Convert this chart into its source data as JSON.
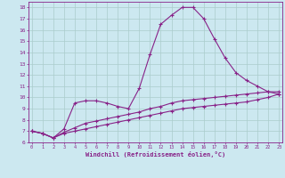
{
  "xlabel": "Windchill (Refroidissement éolien,°C)",
  "background_color": "#cce8f0",
  "grid_color": "#aacccc",
  "line_color": "#882288",
  "x_ticks": [
    0,
    1,
    2,
    3,
    4,
    5,
    6,
    7,
    8,
    9,
    10,
    11,
    12,
    13,
    14,
    15,
    16,
    17,
    18,
    19,
    20,
    21,
    22,
    23
  ],
  "y_ticks": [
    6,
    7,
    8,
    9,
    10,
    11,
    12,
    13,
    14,
    15,
    16,
    17,
    18
  ],
  "ylim": [
    6.0,
    18.5
  ],
  "xlim": [
    -0.3,
    23.3
  ],
  "series": [
    {
      "x": [
        0,
        1,
        2,
        3,
        4,
        5,
        6,
        7,
        8,
        9,
        10,
        11,
        12,
        13,
        14,
        15,
        16,
        17,
        18,
        19,
        20,
        21,
        22,
        23
      ],
      "y": [
        7.0,
        6.8,
        6.4,
        7.2,
        9.5,
        9.7,
        9.7,
        9.5,
        9.2,
        9.0,
        10.8,
        13.8,
        16.5,
        17.3,
        18.0,
        18.0,
        17.0,
        15.2,
        13.5,
        12.2,
        11.5,
        11.0,
        10.5,
        10.3
      ]
    },
    {
      "x": [
        0,
        1,
        2,
        3,
        4,
        5,
        6,
        7,
        8,
        9,
        10,
        11,
        12,
        13,
        14,
        15,
        16,
        17,
        18,
        19,
        20,
        21,
        22,
        23
      ],
      "y": [
        7.0,
        6.8,
        6.4,
        6.9,
        7.3,
        7.7,
        7.9,
        8.1,
        8.3,
        8.5,
        8.7,
        9.0,
        9.2,
        9.5,
        9.7,
        9.8,
        9.9,
        10.0,
        10.1,
        10.2,
        10.3,
        10.4,
        10.5,
        10.5
      ]
    },
    {
      "x": [
        0,
        1,
        2,
        3,
        4,
        5,
        6,
        7,
        8,
        9,
        10,
        11,
        12,
        13,
        14,
        15,
        16,
        17,
        18,
        19,
        20,
        21,
        22,
        23
      ],
      "y": [
        7.0,
        6.8,
        6.4,
        6.8,
        7.0,
        7.2,
        7.4,
        7.6,
        7.8,
        8.0,
        8.2,
        8.4,
        8.6,
        8.8,
        9.0,
        9.1,
        9.2,
        9.3,
        9.4,
        9.5,
        9.6,
        9.8,
        10.0,
        10.3
      ]
    }
  ]
}
